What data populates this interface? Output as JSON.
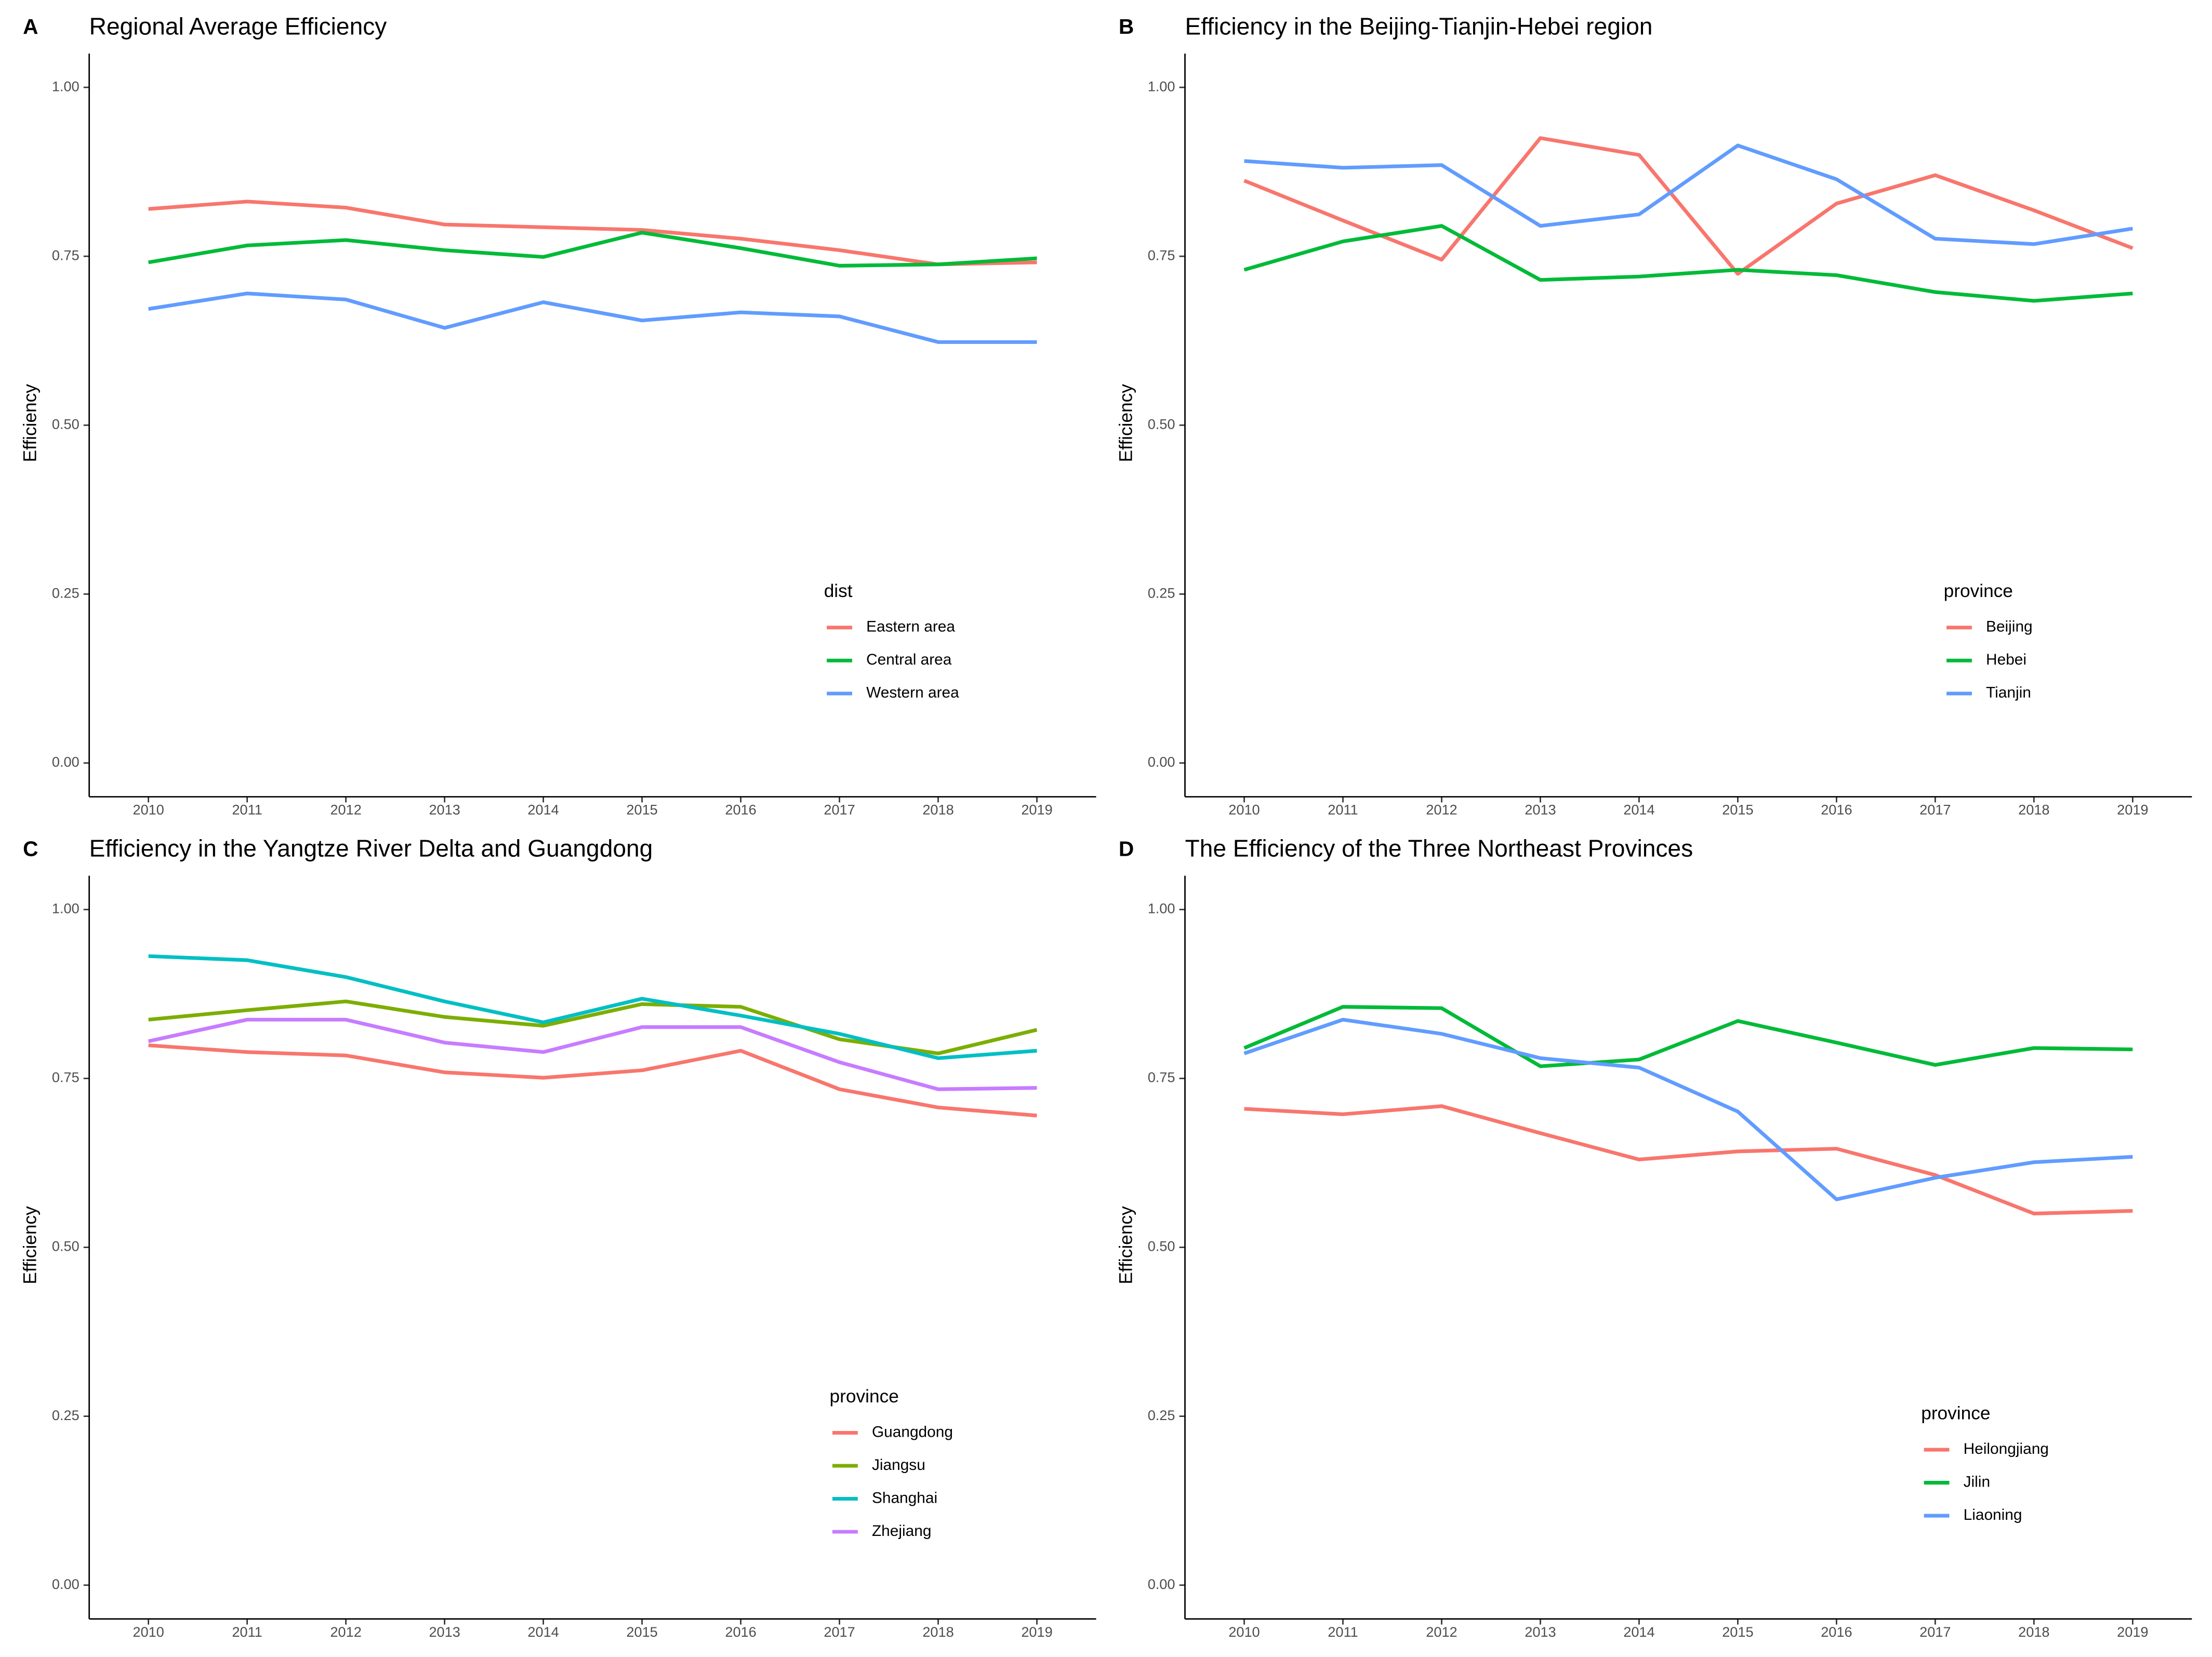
{
  "chart_data": [
    {
      "type": "line",
      "panel": "A",
      "title": "Regional Average Efficiency",
      "ylabel": "Efficiency",
      "legend_title": "dist",
      "categories": [
        "2010",
        "2011",
        "2012",
        "2013",
        "2014",
        "2015",
        "2016",
        "2017",
        "2018",
        "2019"
      ],
      "ylim": [
        -0.05,
        1.05
      ],
      "yticks": [
        {
          "value": 0,
          "label": "0.00"
        },
        {
          "value": 0.25,
          "label": "0.25"
        },
        {
          "value": 0.5,
          "label": "0.50"
        },
        {
          "value": 0.75,
          "label": "0.75"
        },
        {
          "value": 1,
          "label": "1.00"
        }
      ],
      "series": [
        {
          "name": "Eastern area",
          "color": "#F8766D",
          "values": [
            0.82,
            0.831,
            0.822,
            0.797,
            0.793,
            0.789,
            0.776,
            0.759,
            0.738,
            0.741
          ]
        },
        {
          "name": "Central area",
          "color": "#00BA38",
          "values": [
            0.741,
            0.766,
            0.774,
            0.759,
            0.749,
            0.785,
            0.762,
            0.736,
            0.738,
            0.747
          ]
        },
        {
          "name": "Western area",
          "color": "#619CFF",
          "values": [
            0.672,
            0.695,
            0.686,
            0.644,
            0.682,
            0.655,
            0.667,
            0.661,
            0.623,
            0.623
          ]
        }
      ]
    },
    {
      "type": "line",
      "panel": "B",
      "title": "Efficiency in the Beijing-Tianjin-Hebei region",
      "ylabel": "Efficiency",
      "legend_title": "province",
      "categories": [
        "2010",
        "2011",
        "2012",
        "2013",
        "2014",
        "2015",
        "2016",
        "2017",
        "2018",
        "2019"
      ],
      "ylim": [
        -0.05,
        1.05
      ],
      "yticks": [
        {
          "value": 0,
          "label": "0.00"
        },
        {
          "value": 0.25,
          "label": "0.25"
        },
        {
          "value": 0.5,
          "label": "0.50"
        },
        {
          "value": 0.75,
          "label": "0.75"
        },
        {
          "value": 1,
          "label": "1.00"
        }
      ],
      "series": [
        {
          "name": "Beijing",
          "color": "#F8766D",
          "values": [
            0.862,
            0.803,
            0.745,
            0.925,
            0.9,
            0.724,
            0.828,
            0.87,
            0.818,
            0.762
          ]
        },
        {
          "name": "Hebei",
          "color": "#00BA38",
          "values": [
            0.73,
            0.772,
            0.795,
            0.715,
            0.72,
            0.73,
            0.722,
            0.697,
            0.684,
            0.695
          ]
        },
        {
          "name": "Tianjin",
          "color": "#619CFF",
          "values": [
            0.891,
            0.881,
            0.885,
            0.795,
            0.812,
            0.914,
            0.864,
            0.776,
            0.768,
            0.791
          ]
        }
      ]
    },
    {
      "type": "line",
      "panel": "C",
      "title": "Efficiency in the Yangtze River Delta and Guangdong",
      "ylabel": "Efficiency",
      "legend_title": "province",
      "categories": [
        "2010",
        "2011",
        "2012",
        "2013",
        "2014",
        "2015",
        "2016",
        "2017",
        "2018",
        "2019"
      ],
      "ylim": [
        -0.05,
        1.05
      ],
      "yticks": [
        {
          "value": 0,
          "label": "0.00"
        },
        {
          "value": 0.25,
          "label": "0.25"
        },
        {
          "value": 0.5,
          "label": "0.50"
        },
        {
          "value": 0.75,
          "label": "0.75"
        },
        {
          "value": 1,
          "label": "1.00"
        }
      ],
      "series": [
        {
          "name": "Guangdong",
          "color": "#F8766D",
          "values": [
            0.799,
            0.789,
            0.784,
            0.759,
            0.751,
            0.762,
            0.791,
            0.734,
            0.707,
            0.695
          ]
        },
        {
          "name": "Jiangsu",
          "color": "#7CAE00",
          "values": [
            0.837,
            0.851,
            0.864,
            0.841,
            0.828,
            0.86,
            0.856,
            0.808,
            0.787,
            0.822
          ]
        },
        {
          "name": "Shanghai",
          "color": "#00BFC4",
          "values": [
            0.931,
            0.925,
            0.9,
            0.864,
            0.833,
            0.868,
            0.843,
            0.816,
            0.78,
            0.791
          ]
        },
        {
          "name": "Zhejiang",
          "color": "#C77CFF",
          "values": [
            0.805,
            0.837,
            0.837,
            0.803,
            0.789,
            0.826,
            0.826,
            0.774,
            0.734,
            0.736
          ]
        }
      ]
    },
    {
      "type": "line",
      "panel": "D",
      "title": "The Efficiency of the Three Northeast Provinces",
      "ylabel": "Efficiency",
      "legend_title": "province",
      "categories": [
        "2010",
        "2011",
        "2012",
        "2013",
        "2014",
        "2015",
        "2016",
        "2017",
        "2018",
        "2019"
      ],
      "ylim": [
        -0.05,
        1.05
      ],
      "yticks": [
        {
          "value": 0,
          "label": "0.00"
        },
        {
          "value": 0.25,
          "label": "0.25"
        },
        {
          "value": 0.5,
          "label": "0.50"
        },
        {
          "value": 0.75,
          "label": "0.75"
        },
        {
          "value": 1,
          "label": "1.00"
        }
      ],
      "series": [
        {
          "name": "Heilongjiang",
          "color": "#F8766D",
          "values": [
            0.705,
            0.697,
            0.709,
            0.669,
            0.63,
            0.642,
            0.646,
            0.607,
            0.55,
            0.554
          ]
        },
        {
          "name": "Jilin",
          "color": "#00BA38",
          "values": [
            0.795,
            0.856,
            0.854,
            0.768,
            0.778,
            0.835,
            0.803,
            0.77,
            0.795,
            0.793
          ]
        },
        {
          "name": "Liaoning",
          "color": "#619CFF",
          "values": [
            0.787,
            0.837,
            0.816,
            0.78,
            0.766,
            0.701,
            0.571,
            0.603,
            0.626,
            0.634
          ]
        }
      ]
    }
  ]
}
